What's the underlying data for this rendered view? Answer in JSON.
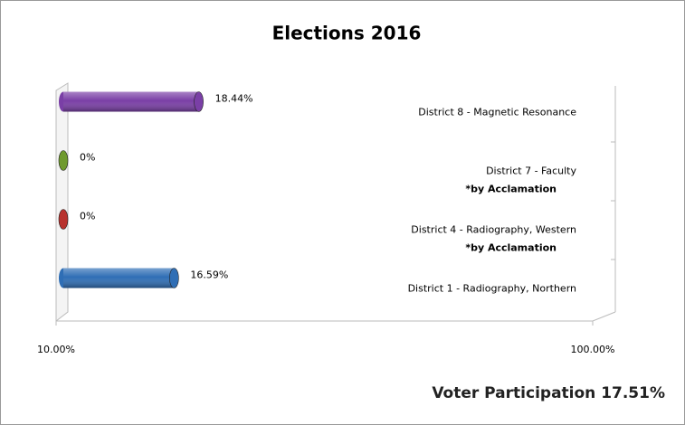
{
  "chart_data": {
    "type": "bar",
    "orientation": "horizontal",
    "title": "Elections 2016",
    "categories": [
      "District 8  - Magnetic Resonance",
      "District 7  - Faculty",
      "District 4 - Radiography, Western",
      "District 1 - Radiography, Northern"
    ],
    "values": [
      18.44,
      0,
      0,
      16.59
    ],
    "value_labels": [
      "18.44%",
      "0%",
      "0%",
      "16.59%"
    ],
    "colors": [
      "#7a3fa6",
      "#6f9a2e",
      "#b8322e",
      "#2f6eb5"
    ],
    "notes": [
      null,
      "*by Acclamation",
      "*by Acclamation",
      null
    ],
    "xlim": [
      10,
      100
    ],
    "log_x": true,
    "xticks": [
      {
        "value": 10,
        "label": "10.00%"
      },
      {
        "value": 100,
        "label": "100.00%"
      }
    ],
    "footer": "Voter Participation 17.51%"
  }
}
